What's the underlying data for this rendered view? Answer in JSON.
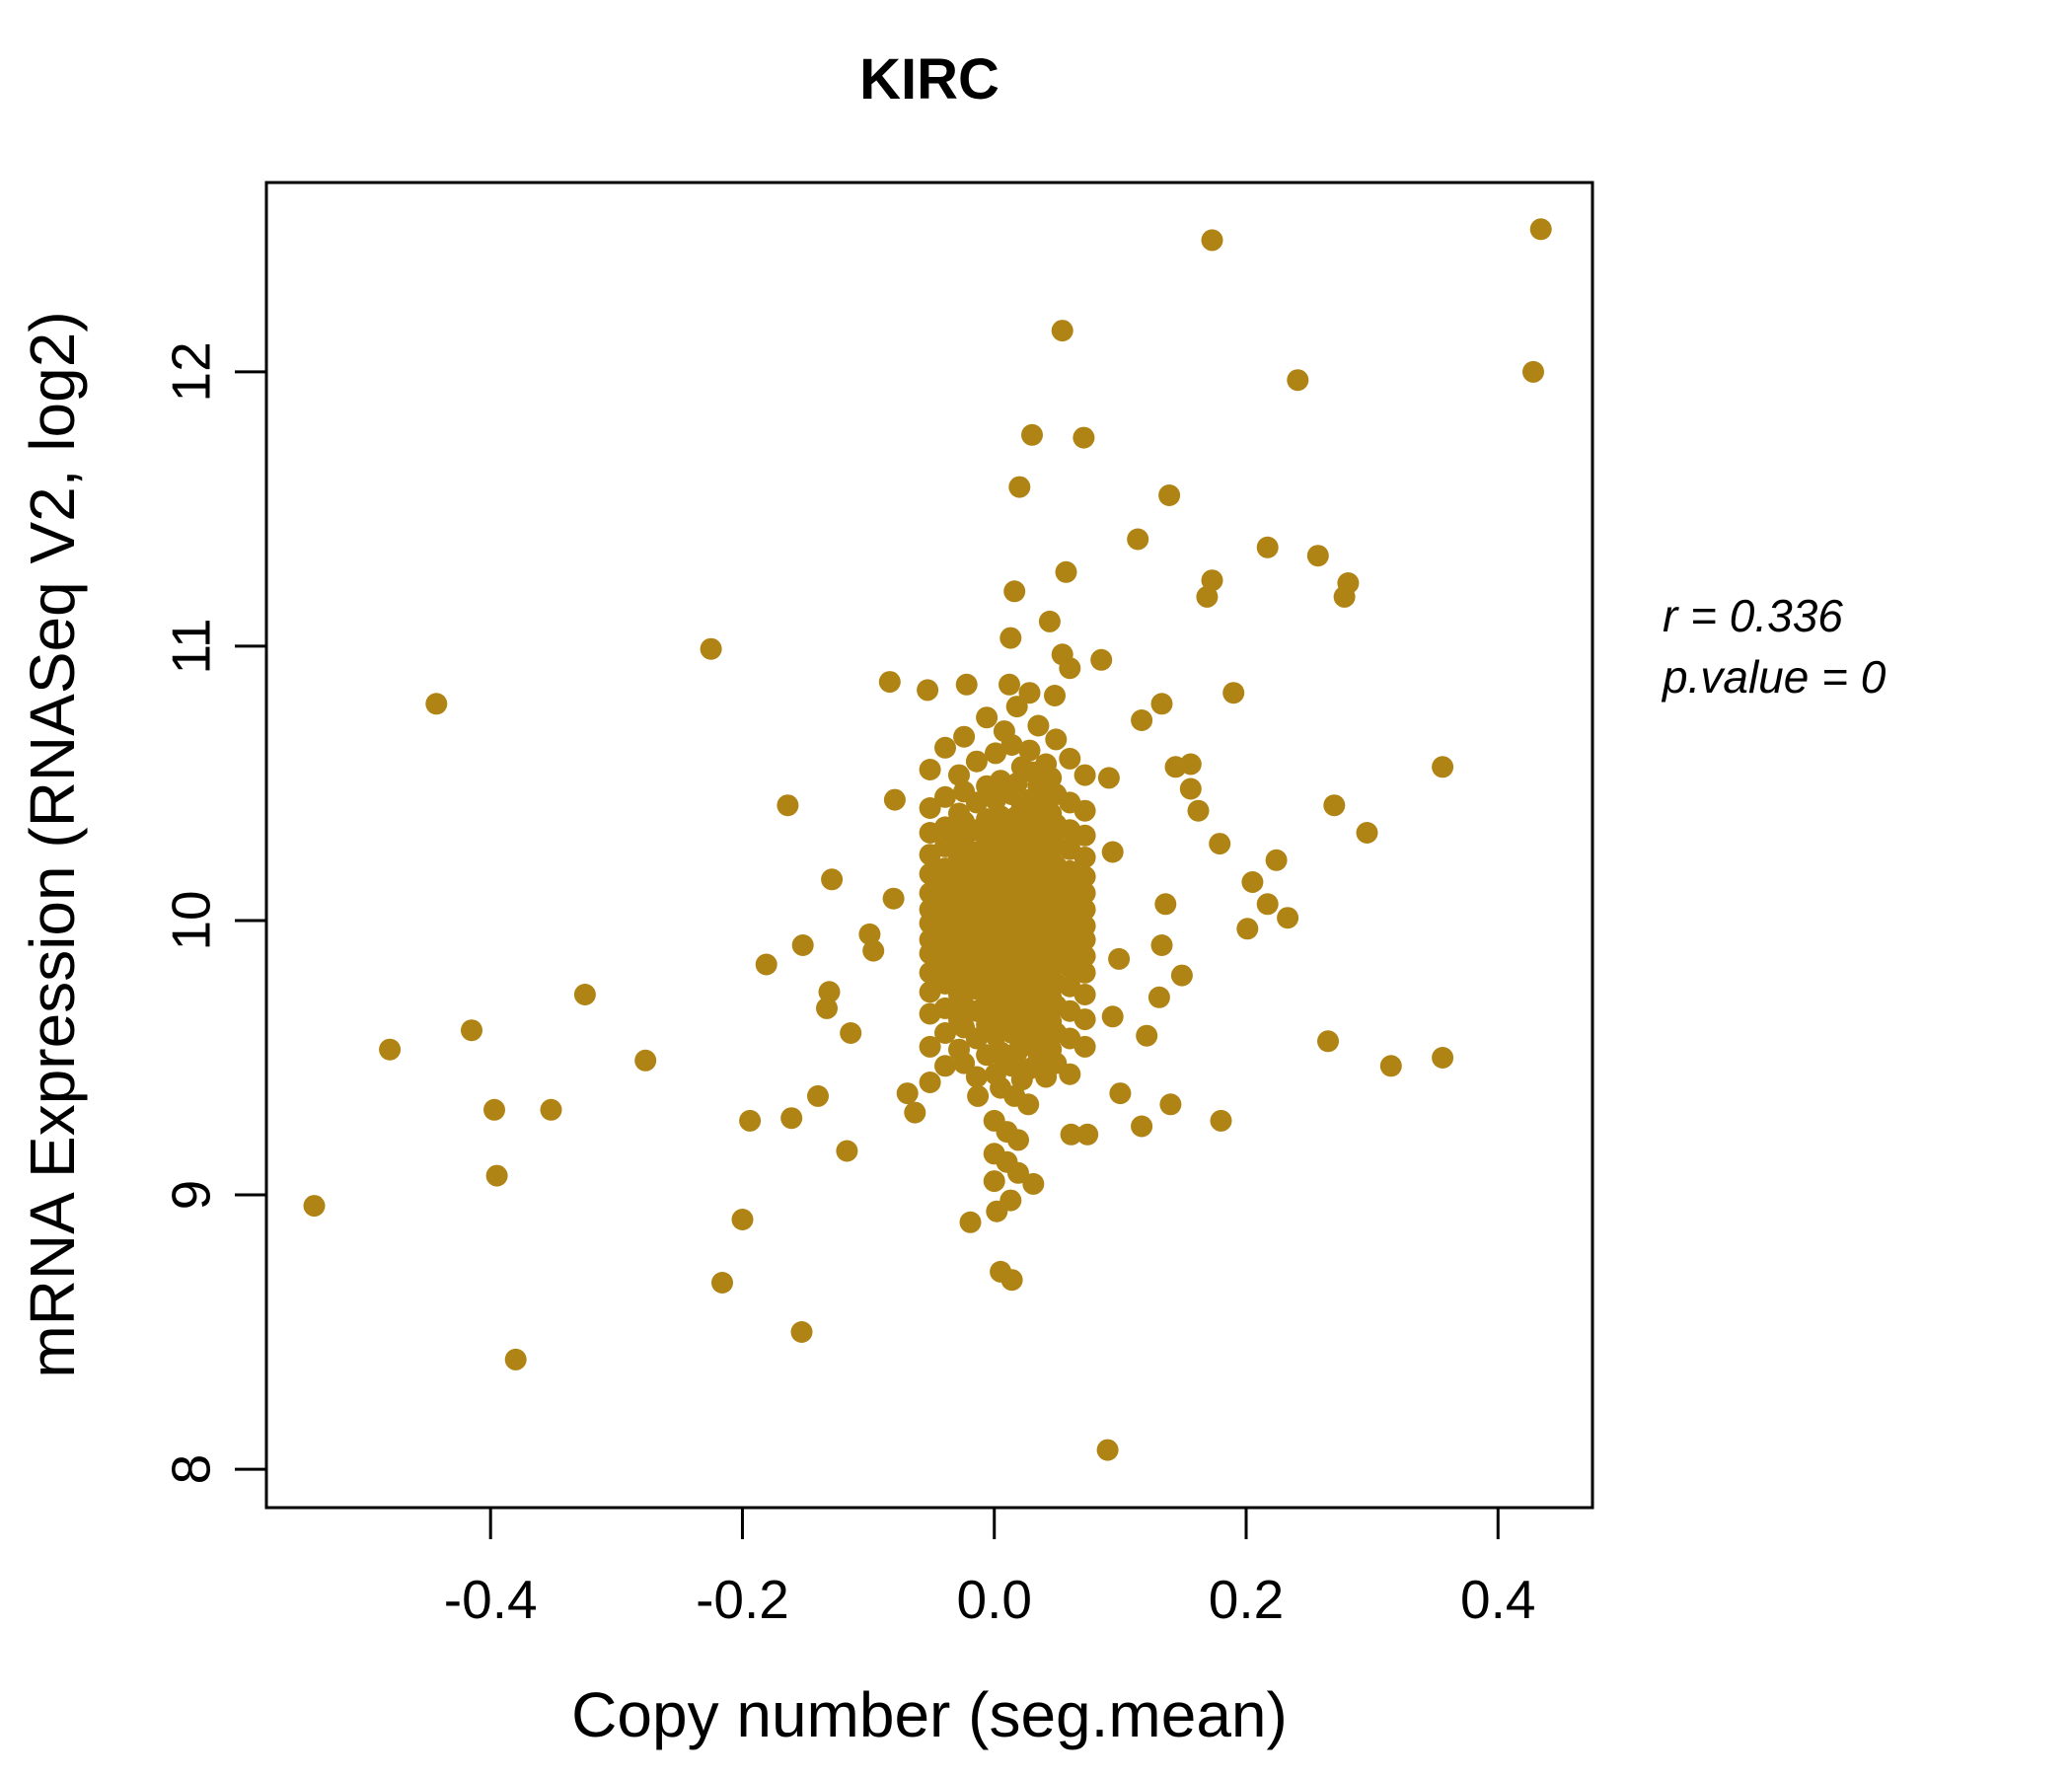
{
  "title": {
    "text": "KIRC",
    "color": "#B08414"
  },
  "annotation": {
    "line1": "r = 0.336",
    "line2": "p.value = 0"
  },
  "chart_data": {
    "type": "scatter",
    "title": "KIRC",
    "xlabel": "Copy number (seg.mean)",
    "ylabel": "mRNA Expression (RNASeq V2, log2)",
    "xlim": [
      -0.578,
      0.475
    ],
    "ylim": [
      7.86,
      12.69
    ],
    "x_ticks": [
      -0.4,
      -0.2,
      0.0,
      0.2,
      0.4
    ],
    "x_tick_labels": [
      "-0.4",
      "-0.2",
      "0.0",
      "0.2",
      "0.4"
    ],
    "y_ticks": [
      8,
      9,
      10,
      11,
      12
    ],
    "y_tick_labels": [
      "8",
      "9",
      "10",
      "11",
      "12"
    ],
    "grid": false,
    "legend": "none",
    "point_color": "#B08414",
    "axis_color": "#000000",
    "correlation_r": 0.336,
    "p_value": 0,
    "n_points": 407,
    "points": [
      [
        0.173,
        12.48
      ],
      [
        0.434,
        12.52
      ],
      [
        0.054,
        12.15
      ],
      [
        0.241,
        11.97
      ],
      [
        0.428,
        12.0
      ],
      [
        0.03,
        11.77
      ],
      [
        0.071,
        11.76
      ],
      [
        0.02,
        11.58
      ],
      [
        0.139,
        11.55
      ],
      [
        0.114,
        11.39
      ],
      [
        0.217,
        11.36
      ],
      [
        0.257,
        11.33
      ],
      [
        0.057,
        11.27
      ],
      [
        0.173,
        11.24
      ],
      [
        0.281,
        11.23
      ],
      [
        0.016,
        11.2
      ],
      [
        0.169,
        11.18
      ],
      [
        0.278,
        11.18
      ],
      [
        0.044,
        11.09
      ],
      [
        0.013,
        11.03
      ],
      [
        -0.225,
        10.99
      ],
      [
        0.054,
        10.97
      ],
      [
        0.085,
        10.95
      ],
      [
        -0.083,
        10.87
      ],
      [
        -0.053,
        10.84
      ],
      [
        -0.022,
        10.86
      ],
      [
        0.06,
        10.92
      ],
      [
        0.19,
        10.83
      ],
      [
        0.117,
        10.73
      ],
      [
        -0.443,
        10.79
      ],
      [
        0.028,
        10.83
      ],
      [
        0.133,
        10.79
      ],
      [
        0.091,
        10.52
      ],
      [
        0.144,
        10.56
      ],
      [
        -0.164,
        10.42
      ],
      [
        -0.079,
        10.44
      ],
      [
        -0.129,
        10.15
      ],
      [
        -0.08,
        10.08
      ],
      [
        -0.099,
        9.95
      ],
      [
        -0.096,
        9.89
      ],
      [
        -0.152,
        9.91
      ],
      [
        -0.181,
        9.84
      ],
      [
        -0.131,
        9.74
      ],
      [
        -0.133,
        9.68
      ],
      [
        -0.114,
        9.59
      ],
      [
        -0.325,
        9.73
      ],
      [
        -0.48,
        9.53
      ],
      [
        -0.415,
        9.6
      ],
      [
        -0.277,
        9.49
      ],
      [
        -0.397,
        9.31
      ],
      [
        -0.352,
        9.31
      ],
      [
        -0.395,
        9.07
      ],
      [
        -0.54,
        8.96
      ],
      [
        -0.194,
        9.27
      ],
      [
        -0.161,
        9.28
      ],
      [
        -0.14,
        9.36
      ],
      [
        -0.117,
        9.16
      ],
      [
        -0.2,
        8.91
      ],
      [
        -0.216,
        8.68
      ],
      [
        -0.153,
        8.5
      ],
      [
        -0.38,
        8.4
      ],
      [
        -0.069,
        9.37
      ],
      [
        -0.063,
        9.3
      ],
      [
        -0.013,
        9.36
      ],
      [
        0.005,
        9.39
      ],
      [
        0.016,
        9.36
      ],
      [
        0.027,
        9.33
      ],
      [
        0.0,
        9.27
      ],
      [
        0.01,
        9.23
      ],
      [
        0.019,
        9.2
      ],
      [
        0.0,
        9.15
      ],
      [
        0.01,
        9.12
      ],
      [
        0.019,
        9.08
      ],
      [
        0.0,
        9.05
      ],
      [
        0.031,
        9.04
      ],
      [
        0.013,
        8.98
      ],
      [
        0.002,
        8.94
      ],
      [
        -0.019,
        8.9
      ],
      [
        0.005,
        8.72
      ],
      [
        0.014,
        8.69
      ],
      [
        0.09,
        8.07
      ],
      [
        0.356,
        10.56
      ],
      [
        0.27,
        10.42
      ],
      [
        0.296,
        10.32
      ],
      [
        0.156,
        10.57
      ],
      [
        0.156,
        10.48
      ],
      [
        0.162,
        10.4
      ],
      [
        0.179,
        10.28
      ],
      [
        0.224,
        10.22
      ],
      [
        0.205,
        10.14
      ],
      [
        0.217,
        10.06
      ],
      [
        0.233,
        10.01
      ],
      [
        0.201,
        9.97
      ],
      [
        0.136,
        10.06
      ],
      [
        0.094,
        10.25
      ],
      [
        0.133,
        9.91
      ],
      [
        0.099,
        9.86
      ],
      [
        0.149,
        9.8
      ],
      [
        0.131,
        9.72
      ],
      [
        0.094,
        9.65
      ],
      [
        0.121,
        9.58
      ],
      [
        0.265,
        9.56
      ],
      [
        0.315,
        9.47
      ],
      [
        0.356,
        9.5
      ],
      [
        0.14,
        9.33
      ],
      [
        0.18,
        9.27
      ],
      [
        0.117,
        9.25
      ],
      [
        0.1,
        9.37
      ],
      [
        0.061,
        9.22
      ],
      [
        0.074,
        9.22
      ],
      [
        0.012,
        10.86
      ],
      [
        0.048,
        10.82
      ],
      [
        0.018,
        10.78
      ],
      [
        -0.006,
        10.74
      ],
      [
        0.035,
        10.71
      ],
      [
        0.008,
        10.69
      ],
      [
        -0.024,
        10.67
      ],
      [
        0.049,
        10.66
      ],
      [
        0.014,
        10.64
      ],
      [
        -0.039,
        10.63
      ],
      [
        0.028,
        10.62
      ],
      [
        0.001,
        10.61
      ],
      [
        0.06,
        10.59
      ],
      [
        -0.014,
        10.58
      ],
      [
        0.041,
        10.57
      ],
      [
        0.022,
        10.56
      ],
      [
        -0.051,
        10.55
      ],
      [
        0.031,
        10.54
      ],
      [
        0.072,
        10.53
      ],
      [
        -0.028,
        10.53
      ],
      [
        0.045,
        10.52
      ],
      [
        0.005,
        10.51
      ],
      [
        0.018,
        10.5
      ],
      [
        -0.006,
        10.49
      ],
      [
        0.035,
        10.49
      ],
      [
        0.008,
        10.48
      ],
      [
        -0.024,
        10.47
      ],
      [
        0.049,
        10.46
      ],
      [
        0.014,
        10.46
      ],
      [
        -0.039,
        10.45
      ],
      [
        0.028,
        10.44
      ],
      [
        0.001,
        10.44
      ],
      [
        0.06,
        10.43
      ],
      [
        -0.014,
        10.43
      ],
      [
        0.041,
        10.42
      ],
      [
        0.022,
        10.42
      ],
      [
        -0.051,
        10.41
      ],
      [
        0.031,
        10.41
      ],
      [
        0.072,
        10.4
      ],
      [
        -0.028,
        10.39
      ],
      [
        0.045,
        10.39
      ],
      [
        0.005,
        10.38
      ],
      [
        0.018,
        10.38
      ],
      [
        -0.006,
        10.37
      ],
      [
        0.035,
        10.37
      ],
      [
        0.008,
        10.36
      ],
      [
        -0.024,
        10.36
      ],
      [
        0.049,
        10.35
      ],
      [
        0.014,
        10.35
      ],
      [
        -0.039,
        10.34
      ],
      [
        0.028,
        10.34
      ],
      [
        0.001,
        10.34
      ],
      [
        0.06,
        10.33
      ],
      [
        -0.014,
        10.33
      ],
      [
        0.041,
        10.32
      ],
      [
        0.022,
        10.32
      ],
      [
        -0.051,
        10.32
      ],
      [
        0.031,
        10.31
      ],
      [
        0.072,
        10.31
      ],
      [
        -0.028,
        10.3
      ],
      [
        0.045,
        10.3
      ],
      [
        0.005,
        10.29
      ],
      [
        0.018,
        10.29
      ],
      [
        -0.006,
        10.29
      ],
      [
        0.035,
        10.28
      ],
      [
        0.008,
        10.28
      ],
      [
        -0.024,
        10.28
      ],
      [
        0.049,
        10.27
      ],
      [
        0.014,
        10.27
      ],
      [
        -0.039,
        10.27
      ],
      [
        0.028,
        10.26
      ],
      [
        0.001,
        10.26
      ],
      [
        0.06,
        10.26
      ],
      [
        -0.014,
        10.25
      ],
      [
        0.041,
        10.24
      ],
      [
        0.022,
        10.24
      ],
      [
        -0.051,
        10.24
      ],
      [
        0.031,
        10.23
      ],
      [
        0.072,
        10.23
      ],
      [
        -0.028,
        10.23
      ],
      [
        0.045,
        10.22
      ],
      [
        0.005,
        10.22
      ],
      [
        0.018,
        10.22
      ],
      [
        -0.006,
        10.21
      ],
      [
        0.035,
        10.21
      ],
      [
        0.008,
        10.21
      ],
      [
        -0.024,
        10.2
      ],
      [
        0.049,
        10.2
      ],
      [
        0.014,
        10.19
      ],
      [
        -0.039,
        10.19
      ],
      [
        0.028,
        10.19
      ],
      [
        0.001,
        10.18
      ],
      [
        0.06,
        10.18
      ],
      [
        -0.014,
        10.18
      ],
      [
        0.041,
        10.17
      ],
      [
        0.022,
        10.17
      ],
      [
        -0.051,
        10.17
      ],
      [
        0.031,
        10.16
      ],
      [
        0.072,
        10.16
      ],
      [
        -0.028,
        10.16
      ],
      [
        0.045,
        10.15
      ],
      [
        0.005,
        10.15
      ],
      [
        0.018,
        10.15
      ],
      [
        -0.006,
        10.14
      ],
      [
        0.035,
        10.14
      ],
      [
        0.008,
        10.14
      ],
      [
        -0.024,
        10.13
      ],
      [
        0.049,
        10.13
      ],
      [
        0.014,
        10.13
      ],
      [
        -0.039,
        10.12
      ],
      [
        0.028,
        10.12
      ],
      [
        0.001,
        10.12
      ],
      [
        0.06,
        10.12
      ],
      [
        -0.014,
        10.11
      ],
      [
        0.041,
        10.11
      ],
      [
        0.022,
        10.11
      ],
      [
        -0.051,
        10.1
      ],
      [
        0.031,
        10.1
      ],
      [
        0.072,
        10.1
      ],
      [
        -0.028,
        10.09
      ],
      [
        0.045,
        10.09
      ],
      [
        0.005,
        10.09
      ],
      [
        0.018,
        10.08
      ],
      [
        -0.006,
        10.08
      ],
      [
        0.035,
        10.08
      ],
      [
        0.008,
        10.08
      ],
      [
        -0.024,
        10.07
      ],
      [
        0.049,
        10.07
      ],
      [
        0.014,
        10.07
      ],
      [
        -0.039,
        10.07
      ],
      [
        0.028,
        10.06
      ],
      [
        0.001,
        10.06
      ],
      [
        0.06,
        10.06
      ],
      [
        -0.014,
        10.06
      ],
      [
        0.041,
        10.05
      ],
      [
        0.022,
        10.05
      ],
      [
        -0.051,
        10.04
      ],
      [
        0.031,
        10.04
      ],
      [
        0.072,
        10.04
      ],
      [
        -0.028,
        10.04
      ],
      [
        0.045,
        10.03
      ],
      [
        0.005,
        10.03
      ],
      [
        0.018,
        10.03
      ],
      [
        -0.006,
        10.03
      ],
      [
        0.035,
        10.02
      ],
      [
        0.008,
        10.02
      ],
      [
        -0.024,
        10.02
      ],
      [
        0.049,
        10.02
      ],
      [
        0.014,
        10.01
      ],
      [
        -0.039,
        10.01
      ],
      [
        0.028,
        10.01
      ],
      [
        0.001,
        10.01
      ],
      [
        0.06,
        10.0
      ],
      [
        -0.014,
        10.0
      ],
      [
        0.041,
        9.99
      ],
      [
        0.022,
        9.99
      ],
      [
        -0.051,
        9.99
      ],
      [
        0.031,
        9.99
      ],
      [
        0.072,
        9.98
      ],
      [
        -0.028,
        9.98
      ],
      [
        0.045,
        9.98
      ],
      [
        0.005,
        9.98
      ],
      [
        0.018,
        9.97
      ],
      [
        -0.006,
        9.97
      ],
      [
        0.035,
        9.97
      ],
      [
        0.008,
        9.97
      ],
      [
        -0.024,
        9.96
      ],
      [
        0.049,
        9.96
      ],
      [
        0.014,
        9.96
      ],
      [
        -0.039,
        9.96
      ],
      [
        0.028,
        9.95
      ],
      [
        0.001,
        9.95
      ],
      [
        0.06,
        9.94
      ],
      [
        -0.014,
        9.94
      ],
      [
        0.041,
        9.94
      ],
      [
        0.022,
        9.94
      ],
      [
        -0.051,
        9.93
      ],
      [
        0.031,
        9.93
      ],
      [
        0.072,
        9.93
      ],
      [
        -0.028,
        9.93
      ],
      [
        0.045,
        9.92
      ],
      [
        0.005,
        9.92
      ],
      [
        0.018,
        9.92
      ],
      [
        -0.006,
        9.92
      ],
      [
        0.035,
        9.91
      ],
      [
        0.008,
        9.91
      ],
      [
        -0.024,
        9.91
      ],
      [
        0.049,
        9.91
      ],
      [
        0.014,
        9.9
      ],
      [
        -0.039,
        9.89
      ],
      [
        0.028,
        9.89
      ],
      [
        0.001,
        9.89
      ],
      [
        0.06,
        9.89
      ],
      [
        -0.014,
        9.88
      ],
      [
        0.041,
        9.88
      ],
      [
        0.022,
        9.88
      ],
      [
        -0.051,
        9.88
      ],
      [
        0.031,
        9.87
      ],
      [
        0.072,
        9.87
      ],
      [
        -0.028,
        9.87
      ],
      [
        0.045,
        9.86
      ],
      [
        0.005,
        9.86
      ],
      [
        0.018,
        9.86
      ],
      [
        -0.006,
        9.86
      ],
      [
        0.035,
        9.85
      ],
      [
        0.008,
        9.84
      ],
      [
        -0.024,
        9.84
      ],
      [
        0.049,
        9.84
      ],
      [
        0.014,
        9.84
      ],
      [
        -0.039,
        9.83
      ],
      [
        0.028,
        9.83
      ],
      [
        0.001,
        9.83
      ],
      [
        0.06,
        9.83
      ],
      [
        -0.014,
        9.82
      ],
      [
        0.041,
        9.82
      ],
      [
        0.022,
        9.82
      ],
      [
        -0.051,
        9.81
      ],
      [
        0.031,
        9.81
      ],
      [
        0.072,
        9.81
      ],
      [
        -0.028,
        9.8
      ],
      [
        0.045,
        9.79
      ],
      [
        0.005,
        9.79
      ],
      [
        0.018,
        9.79
      ],
      [
        -0.006,
        9.79
      ],
      [
        0.035,
        9.78
      ],
      [
        0.008,
        9.78
      ],
      [
        -0.024,
        9.78
      ],
      [
        0.049,
        9.77
      ],
      [
        0.014,
        9.77
      ],
      [
        -0.039,
        9.77
      ],
      [
        0.028,
        9.76
      ],
      [
        0.001,
        9.76
      ],
      [
        0.06,
        9.76
      ],
      [
        -0.014,
        9.75
      ],
      [
        0.041,
        9.74
      ],
      [
        0.022,
        9.74
      ],
      [
        -0.051,
        9.74
      ],
      [
        0.031,
        9.73
      ],
      [
        0.072,
        9.73
      ],
      [
        -0.028,
        9.73
      ],
      [
        0.045,
        9.72
      ],
      [
        0.005,
        9.72
      ],
      [
        0.018,
        9.72
      ],
      [
        -0.006,
        9.71
      ],
      [
        0.035,
        9.71
      ],
      [
        0.008,
        9.71
      ],
      [
        -0.024,
        9.69
      ],
      [
        0.049,
        9.69
      ],
      [
        0.014,
        9.69
      ],
      [
        -0.039,
        9.68
      ],
      [
        0.028,
        9.68
      ],
      [
        0.001,
        9.68
      ],
      [
        0.06,
        9.67
      ],
      [
        -0.014,
        9.67
      ],
      [
        0.041,
        9.67
      ],
      [
        0.022,
        9.66
      ],
      [
        -0.051,
        9.66
      ],
      [
        0.031,
        9.64
      ],
      [
        0.072,
        9.64
      ],
      [
        -0.028,
        9.64
      ],
      [
        0.045,
        9.63
      ],
      [
        0.005,
        9.63
      ],
      [
        0.018,
        9.63
      ],
      [
        -0.006,
        9.62
      ],
      [
        0.035,
        9.62
      ],
      [
        0.008,
        9.61
      ],
      [
        -0.024,
        9.61
      ],
      [
        0.049,
        9.59
      ],
      [
        0.014,
        9.59
      ],
      [
        -0.039,
        9.59
      ],
      [
        0.028,
        9.58
      ],
      [
        0.001,
        9.58
      ],
      [
        0.06,
        9.57
      ],
      [
        -0.014,
        9.57
      ],
      [
        0.041,
        9.56
      ],
      [
        0.022,
        9.56
      ],
      [
        -0.051,
        9.54
      ],
      [
        0.031,
        9.54
      ],
      [
        0.072,
        9.54
      ],
      [
        -0.028,
        9.53
      ],
      [
        0.045,
        9.53
      ],
      [
        0.005,
        9.52
      ],
      [
        0.018,
        9.52
      ],
      [
        -0.006,
        9.51
      ],
      [
        0.035,
        9.49
      ],
      [
        0.008,
        9.49
      ],
      [
        -0.024,
        9.48
      ],
      [
        0.049,
        9.48
      ],
      [
        0.014,
        9.47
      ],
      [
        -0.039,
        9.47
      ],
      [
        0.028,
        9.46
      ],
      [
        0.001,
        9.44
      ],
      [
        0.06,
        9.44
      ],
      [
        -0.014,
        9.43
      ],
      [
        0.041,
        9.43
      ],
      [
        0.022,
        9.42
      ],
      [
        -0.051,
        9.41
      ]
    ]
  }
}
